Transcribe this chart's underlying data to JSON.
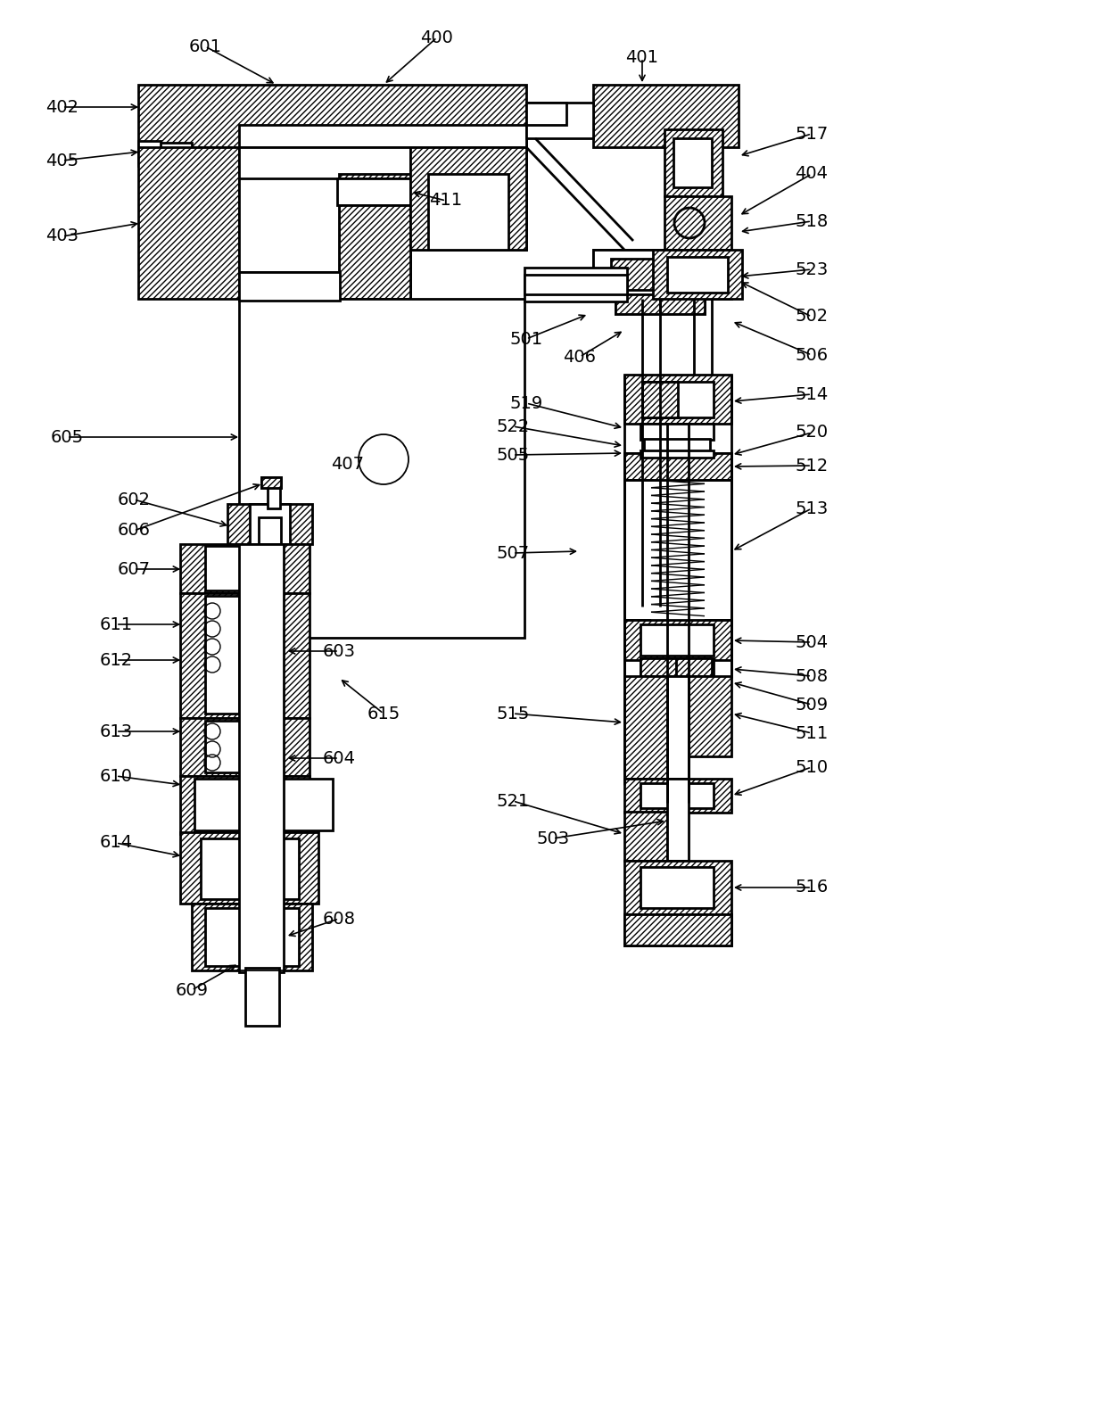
{
  "bg_color": "#ffffff",
  "line_color": "#000000",
  "figsize": [
    12.4,
    15.92
  ],
  "dpi": 100,
  "label_fontsize": 14
}
